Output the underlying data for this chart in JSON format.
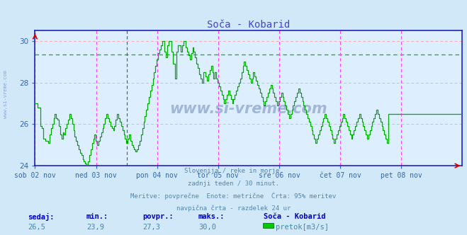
{
  "title": "Soča - Kobarid",
  "title_color": "#4444cc",
  "bg_color": "#d0e8f8",
  "plot_bg_color": "#ddeeff",
  "xlim": [
    0,
    336
  ],
  "ylim": [
    24,
    30.5
  ],
  "yticks": [
    24,
    26,
    28,
    30
  ],
  "grid_h_color": "#ffaaaa",
  "grid_v_color": "#ff44ff",
  "grid_avg_color": "#33aa33",
  "avg_value": 29.35,
  "line_color": "#00aa00",
  "axis_color": "#2222bb",
  "tick_color": "#3366aa",
  "day_labels": [
    "sob 02 nov",
    "ned 03 nov",
    "pon 04 nov",
    "tor 05 nov",
    "sre 06 nov",
    "čet 07 nov",
    "pet 08 nov"
  ],
  "day_positions": [
    0,
    48,
    96,
    144,
    192,
    240,
    288
  ],
  "v_magenta": [
    0,
    48,
    96,
    144,
    192,
    240,
    288,
    336
  ],
  "v_black": 72,
  "footer_lines": [
    "Slovenija / reke in morje.",
    "zadnji teden / 30 minut.",
    "Meritve: povprečne  Enote: metrične  Črta: 95% meritev",
    "navpična črta - razdelek 24 ur"
  ],
  "footer_color": "#5588aa",
  "stats_labels": [
    "sedaj:",
    "min.:",
    "povpr.:",
    "maks.:"
  ],
  "stats_values": [
    "26,5",
    "23,9",
    "27,3",
    "30,0"
  ],
  "stats_label_color": "#0000cc",
  "stats_value_color": "#4488aa",
  "legend_title": "Soča - Kobarid",
  "legend_series": "pretok[m3/s]",
  "legend_color": "#00cc00",
  "watermark": "www.si-vreme.com",
  "watermark_color": "#1a3a7a",
  "watermark_alpha": 0.3,
  "sidewater_color": "#2244aa",
  "sidewater_alpha": 0.4,
  "data_y": [
    27.0,
    27.0,
    26.8,
    26.8,
    25.9,
    25.8,
    25.3,
    25.3,
    25.2,
    25.2,
    25.1,
    25.5,
    25.8,
    26.0,
    26.3,
    26.5,
    26.3,
    26.2,
    25.9,
    25.5,
    25.3,
    25.6,
    25.5,
    25.8,
    26.0,
    26.2,
    26.5,
    26.3,
    26.0,
    25.7,
    25.4,
    25.2,
    25.0,
    24.8,
    24.6,
    24.5,
    24.3,
    24.2,
    24.1,
    24.0,
    24.2,
    24.5,
    24.8,
    25.1,
    25.3,
    25.5,
    25.2,
    25.0,
    25.2,
    25.4,
    25.6,
    25.8,
    26.0,
    26.3,
    26.5,
    26.3,
    26.1,
    25.9,
    25.8,
    25.7,
    25.9,
    26.2,
    26.5,
    26.3,
    26.1,
    25.9,
    25.7,
    25.5,
    25.3,
    25.1,
    25.3,
    25.5,
    25.2,
    25.0,
    24.9,
    24.8,
    24.7,
    24.8,
    25.0,
    25.2,
    25.5,
    25.8,
    26.1,
    26.4,
    26.7,
    27.0,
    27.3,
    27.6,
    27.9,
    28.2,
    28.5,
    28.8,
    29.1,
    29.4,
    29.6,
    29.8,
    30.0,
    30.0,
    29.5,
    29.2,
    29.8,
    30.0,
    30.0,
    29.5,
    28.9,
    28.9,
    28.2,
    29.5,
    29.8,
    29.8,
    29.5,
    29.8,
    30.0,
    30.0,
    29.7,
    29.5,
    29.3,
    29.1,
    29.4,
    29.7,
    29.5,
    29.2,
    28.9,
    28.7,
    28.4,
    28.2,
    28.0,
    28.5,
    28.5,
    28.3,
    28.1,
    28.4,
    28.6,
    28.8,
    28.5,
    28.2,
    28.5,
    28.2,
    28.0,
    27.8,
    27.6,
    27.4,
    27.2,
    27.0,
    27.2,
    27.4,
    27.6,
    27.4,
    27.2,
    27.0,
    27.2,
    27.4,
    27.6,
    27.8,
    28.0,
    28.2,
    28.5,
    28.8,
    29.0,
    28.8,
    28.6,
    28.4,
    28.2,
    28.0,
    28.2,
    28.5,
    28.3,
    28.1,
    27.9,
    27.7,
    27.5,
    27.3,
    27.1,
    26.9,
    27.1,
    27.3,
    27.5,
    27.7,
    27.9,
    27.7,
    27.5,
    27.3,
    27.1,
    26.9,
    27.1,
    27.3,
    27.5,
    27.3,
    27.1,
    26.9,
    26.7,
    26.5,
    26.3,
    26.5,
    26.7,
    26.9,
    27.1,
    27.3,
    27.5,
    27.7,
    27.5,
    27.3,
    27.1,
    26.9,
    26.7,
    26.5,
    26.3,
    26.1,
    25.9,
    25.7,
    25.5,
    25.3,
    25.1,
    25.3,
    25.5,
    25.7,
    25.9,
    26.1,
    26.3,
    26.5,
    26.3,
    26.1,
    25.9,
    25.7,
    25.5,
    25.3,
    25.1,
    25.3,
    25.5,
    25.7,
    25.9,
    26.1,
    26.3,
    26.5,
    26.3,
    26.1,
    25.9,
    25.7,
    25.5,
    25.3,
    25.5,
    25.7,
    25.9,
    26.1,
    26.3,
    26.5,
    26.3,
    26.1,
    25.9,
    25.7,
    25.5,
    25.3,
    25.5,
    25.7,
    25.9,
    26.1,
    26.3,
    26.5,
    26.7,
    26.5,
    26.3,
    26.1,
    25.9,
    25.7,
    25.5,
    25.3,
    25.1,
    26.5,
    26.5,
    26.5,
    26.5,
    26.5,
    26.5,
    26.5,
    26.5,
    26.5,
    26.5,
    26.5,
    26.5,
    26.5,
    26.5,
    26.5,
    26.5,
    26.5,
    26.5,
    26.5,
    26.5,
    26.5,
    26.5,
    26.5,
    26.5,
    26.5,
    26.5,
    26.5,
    26.5,
    26.5,
    26.5,
    26.5,
    26.5,
    26.5,
    26.5,
    26.5,
    26.5,
    26.5,
    26.5,
    26.5,
    26.5,
    26.5,
    26.5,
    26.5,
    26.5,
    26.5,
    26.5,
    26.5,
    26.5,
    26.5,
    26.5,
    26.5,
    26.5,
    26.5,
    26.5,
    26.5,
    26.5,
    26.5
  ]
}
